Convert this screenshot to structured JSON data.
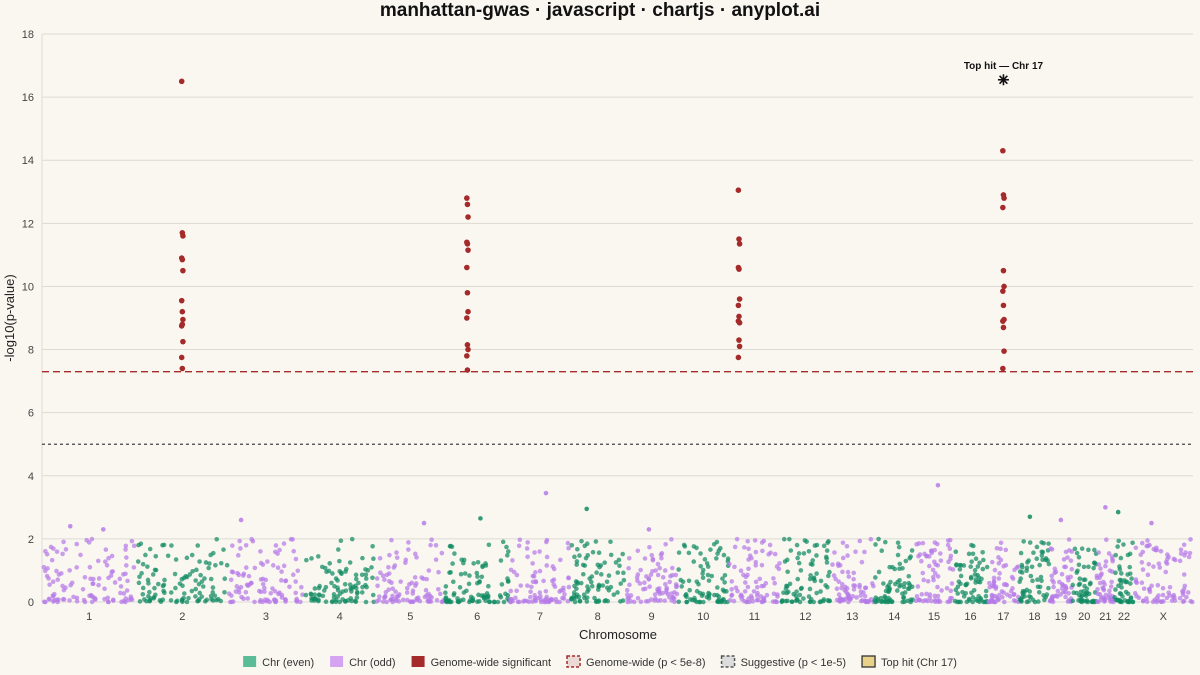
{
  "chart_data": {
    "type": "scatter",
    "title": "manhattan-gwas · javascript · chartjs · anyplot.ai",
    "xlabel": "Chromosome",
    "ylabel": "-log10(p-value)",
    "ylim": [
      0,
      18
    ],
    "yticks": [
      0,
      2,
      4,
      6,
      8,
      10,
      12,
      14,
      16,
      18
    ],
    "grid": true,
    "legend_position": "bottom",
    "colors": {
      "even": "#0f8a63",
      "odd": "#b57ae8",
      "significant": "#a52a2a",
      "genome_wide_line": "#a52a2a",
      "suggestive_line": "#444444",
      "top_hit": "#111111"
    },
    "chromosomes": [
      {
        "label": "1",
        "length": 248
      },
      {
        "label": "2",
        "length": 242
      },
      {
        "label": "3",
        "length": 198
      },
      {
        "label": "4",
        "length": 190
      },
      {
        "label": "5",
        "length": 181
      },
      {
        "label": "6",
        "length": 171
      },
      {
        "label": "7",
        "length": 159
      },
      {
        "label": "8",
        "length": 145
      },
      {
        "label": "9",
        "length": 138
      },
      {
        "label": "10",
        "length": 134
      },
      {
        "label": "11",
        "length": 135
      },
      {
        "label": "12",
        "length": 133
      },
      {
        "label": "13",
        "length": 114
      },
      {
        "label": "14",
        "length": 107
      },
      {
        "label": "15",
        "length": 102
      },
      {
        "label": "16",
        "length": 90
      },
      {
        "label": "17",
        "length": 83
      },
      {
        "label": "18",
        "length": 80
      },
      {
        "label": "19",
        "length": 59
      },
      {
        "label": "20",
        "length": 64
      },
      {
        "label": "21",
        "length": 47
      },
      {
        "label": "22",
        "length": 51
      },
      {
        "label": "X",
        "length": 156
      }
    ],
    "thresholds": [
      {
        "name": "Genome-wide (p < 5e-8)",
        "value": 7.3
      },
      {
        "name": "Suggestive (p < 1e-5)",
        "value": 5.0
      }
    ],
    "series": [
      {
        "name": "Chr (even)"
      },
      {
        "name": "Chr (odd)"
      },
      {
        "name": "Genome-wide significant"
      },
      {
        "name": "Genome-wide (p < 5e-8)"
      },
      {
        "name": "Suggestive (p < 1e-5)"
      },
      {
        "name": "Top hit (Chr 17)"
      }
    ],
    "significant_loci": [
      {
        "chr": "2",
        "pos": 0.5,
        "values": [
          16.5,
          11.7,
          11.6,
          10.9,
          10.85,
          10.5,
          9.55,
          9.2,
          8.95,
          8.75,
          8.8,
          8.25,
          7.75,
          7.4
        ]
      },
      {
        "chr": "6",
        "pos": 0.35,
        "values": [
          12.8,
          12.6,
          12.2,
          11.4,
          11.35,
          11.15,
          10.6,
          9.8,
          9.2,
          9.0,
          8.15,
          8.0,
          7.8,
          7.35
        ]
      },
      {
        "chr": "11",
        "pos": 0.2,
        "values": [
          13.05,
          11.5,
          11.35,
          10.6,
          10.55,
          9.6,
          9.4,
          9.05,
          8.85,
          8.9,
          8.3,
          8.1,
          7.75
        ]
      },
      {
        "chr": "17",
        "pos": 0.5,
        "values": [
          14.3,
          12.9,
          12.8,
          12.5,
          10.5,
          10.0,
          9.85,
          9.4,
          8.95,
          8.9,
          8.7,
          7.95,
          7.4
        ]
      }
    ],
    "notable_points": [
      {
        "chr": "1",
        "pos": 0.3,
        "value": 2.4
      },
      {
        "chr": "1",
        "pos": 0.65,
        "value": 2.3
      },
      {
        "chr": "3",
        "pos": 0.17,
        "value": 2.6
      },
      {
        "chr": "5",
        "pos": 0.7,
        "value": 2.5
      },
      {
        "chr": "6",
        "pos": 0.55,
        "value": 2.65
      },
      {
        "chr": "7",
        "pos": 0.6,
        "value": 3.45
      },
      {
        "chr": "8",
        "pos": 0.3,
        "value": 2.95
      },
      {
        "chr": "9",
        "pos": 0.45,
        "value": 2.3
      },
      {
        "chr": "15",
        "pos": 0.6,
        "value": 3.7
      },
      {
        "chr": "18",
        "pos": 0.35,
        "value": 2.7
      },
      {
        "chr": "19",
        "pos": 0.5,
        "value": 2.6
      },
      {
        "chr": "21",
        "pos": 0.5,
        "value": 3.0
      },
      {
        "chr": "22",
        "pos": 0.2,
        "value": 2.85
      },
      {
        "chr": "X",
        "pos": 0.3,
        "value": 2.5
      }
    ],
    "top_hit": {
      "chr": "17",
      "pos": 0.5,
      "value": 16.55,
      "label": "Top hit — Chr 17"
    },
    "background_points_per_chromosome": 85,
    "background_value_range": [
      0,
      2.0
    ]
  }
}
